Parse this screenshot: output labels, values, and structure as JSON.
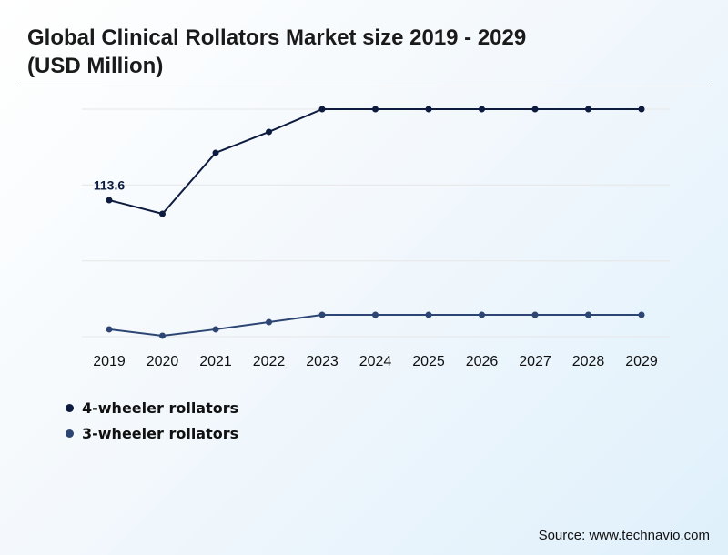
{
  "chart_data": {
    "type": "line",
    "title": "Global Clinical Rollators Market size 2019 - 2029 (USD Million)",
    "categories": [
      "2019",
      "2020",
      "2021",
      "2022",
      "2023",
      "2024",
      "2025",
      "2026",
      "2027",
      "2028",
      "2029"
    ],
    "series": [
      {
        "name": "4-wheeler rollators",
        "color": "#0d1b3e",
        "values": [
          113.6,
          102.2,
          153.0,
          170.4,
          189.3,
          189.3,
          189.3,
          189.3,
          189.3,
          189.3,
          189.3
        ]
      },
      {
        "name": "3-wheeler rollators",
        "color": "#2c4573",
        "values": [
          6.1,
          0.8,
          6.1,
          12.1,
          18.2,
          18.2,
          18.2,
          18.2,
          18.2,
          18.2,
          18.2
        ]
      }
    ],
    "ylim": [
      0,
      189.3
    ],
    "source": "Source: www.technavio.com"
  }
}
